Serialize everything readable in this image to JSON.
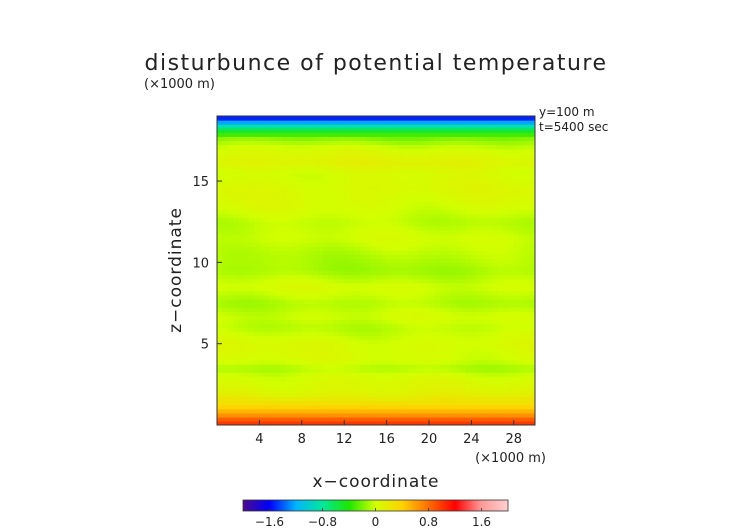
{
  "chart_data": {
    "type": "heatmap",
    "title": "disturbunce of potential temperature",
    "xlabel": "x−coordinate",
    "ylabel": "z−coordinate",
    "x_unit": "(×1000 m)",
    "y_unit": "(×1000 m)",
    "annotations": [
      "y=100 m",
      "t=5400 sec"
    ],
    "xlim": [
      0,
      30
    ],
    "ylim": [
      0,
      19
    ],
    "x_ticks": [
      4,
      8,
      12,
      16,
      20,
      24,
      28
    ],
    "y_ticks": [
      5,
      10,
      15
    ],
    "x_tick_labels": [
      "4",
      "8",
      "12",
      "16",
      "20",
      "24",
      "28"
    ],
    "y_tick_labels": [
      "5",
      "10",
      "15"
    ],
    "colorbar": {
      "range": [
        -2.0,
        2.0
      ],
      "ticks": [
        -1.6,
        -0.8,
        0,
        0.8,
        1.6
      ],
      "tick_labels": [
        "−1.6",
        "−0.8",
        "0",
        "0.8",
        "1.6"
      ],
      "colors": [
        "#4b0c8c",
        "#0000ff",
        "#00b4ff",
        "#00e89a",
        "#1ee600",
        "#d2ff00",
        "#ffd200",
        "#ff6e00",
        "#ff0000",
        "#ff9a9a",
        "#ffd0d0"
      ]
    },
    "field_z_levels": [
      0.2,
      0.7,
      1.3,
      2.0,
      3.0,
      3.5,
      4.0,
      5.0,
      6.0,
      6.7,
      7.5,
      8.5,
      9.5,
      10.5,
      11.5,
      12.5,
      13.5,
      14.5,
      15.5,
      16.2,
      17.0,
      17.6,
      18.0,
      18.3,
      18.6,
      18.9
    ],
    "field_values": [
      1.0,
      0.6,
      0.3,
      0.1,
      0.02,
      -0.08,
      0.02,
      0.04,
      -0.05,
      0.0,
      -0.08,
      0.02,
      -0.1,
      -0.06,
      0.0,
      -0.05,
      0.03,
      0.06,
      0.02,
      0.12,
      0.02,
      -0.15,
      -0.4,
      -0.75,
      -1.2,
      -1.55
    ]
  }
}
